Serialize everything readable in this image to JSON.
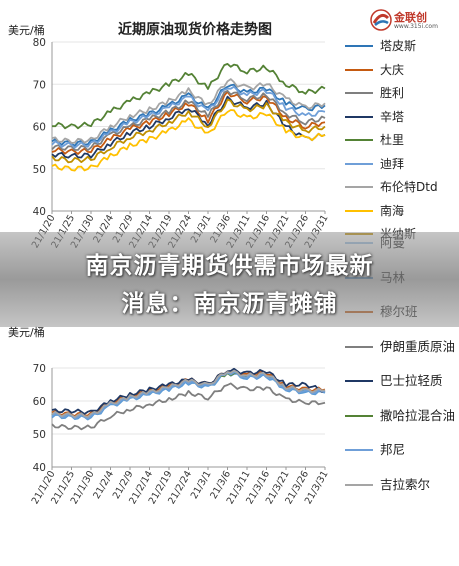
{
  "logo": {
    "name": "金联创",
    "sub": "www.315i.com"
  },
  "banner": {
    "line1": "南京沥青期货供需市场最新",
    "line2": "消息：南京沥青摊铺"
  },
  "chart_data": [
    {
      "type": "line",
      "title": "近期原油现货价格走势图",
      "ylabel": "美元/桶",
      "ylim": [
        40,
        80
      ],
      "yticks": [
        40,
        50,
        60,
        70,
        80
      ],
      "x": [
        "21/1/20",
        "21/1/25",
        "21/1/30",
        "21/2/4",
        "21/2/9",
        "21/2/14",
        "21/2/19",
        "21/2/24",
        "21/3/1",
        "21/3/6",
        "21/3/11",
        "21/3/16",
        "21/3/21",
        "21/3/26",
        "21/3/31"
      ],
      "series": [
        {
          "name": "塔皮斯",
          "color": "#2e75b6",
          "values": [
            56.5,
            56,
            56.2,
            59,
            61.5,
            63,
            65,
            67.5,
            64,
            70,
            68,
            69,
            65.5,
            64,
            65
          ]
        },
        {
          "name": "大庆",
          "color": "#c55a11",
          "values": [
            54.5,
            54,
            54.3,
            57,
            59.5,
            61,
            63,
            65.5,
            61.5,
            68,
            66,
            67,
            62,
            60,
            61
          ]
        },
        {
          "name": "胜利",
          "color": "#7f7f7f",
          "values": [
            55.2,
            54.8,
            55,
            58,
            60,
            61.8,
            63.5,
            66,
            62.5,
            68.5,
            66.5,
            67.5,
            63,
            61,
            62
          ]
        },
        {
          "name": "辛塔",
          "color": "#1f3864",
          "values": [
            53.5,
            53,
            53.2,
            56,
            58.5,
            60,
            62,
            64.5,
            60.5,
            66.5,
            64.5,
            65.5,
            60,
            57,
            58
          ]
        },
        {
          "name": "杜里",
          "color": "#548235",
          "values": [
            60.5,
            60,
            60.5,
            63.5,
            66,
            68,
            70,
            72.5,
            69,
            75,
            73,
            74,
            70,
            68,
            69
          ]
        },
        {
          "name": "迪拜",
          "color": "#6f9fd8",
          "values": [
            56,
            55.5,
            55.8,
            58.5,
            61,
            62.5,
            64.5,
            67,
            63.5,
            69.5,
            67.5,
            68.5,
            64.5,
            62.5,
            63.5
          ]
        },
        {
          "name": "布伦特Dtd",
          "color": "#a5a5a5",
          "values": [
            57,
            56.5,
            56.8,
            60,
            62.5,
            64,
            66,
            68.5,
            65,
            71,
            69,
            70,
            66.5,
            64.5,
            65.5
          ]
        },
        {
          "name": "南海",
          "color": "#ffc000",
          "values": [
            50.5,
            50,
            50.2,
            53,
            55.5,
            57,
            59,
            61.5,
            58,
            64,
            62,
            63,
            59,
            57,
            58
          ]
        },
        {
          "name": "米纳斯",
          "color": "#bf8f00",
          "values": [
            52.5,
            52,
            52.3,
            55,
            57.5,
            59,
            61,
            63.5,
            60,
            66,
            64,
            65,
            61,
            59,
            60
          ]
        }
      ]
    },
    {
      "type": "line",
      "ylabel": "美元/桶",
      "ylim": [
        40,
        70
      ],
      "yticks": [
        40,
        50,
        60,
        70
      ],
      "x": [
        "21/1/20",
        "21/1/25",
        "21/1/30",
        "21/2/4",
        "21/2/9",
        "21/2/14",
        "21/2/19",
        "21/2/24",
        "21/3/1",
        "21/3/6",
        "21/3/11",
        "21/3/16",
        "21/3/21",
        "21/3/26",
        "21/3/31"
      ],
      "series": [
        {
          "name": "阿曼",
          "color": "#9dc3e6",
          "values": [
            56,
            55.5,
            55.5,
            59,
            61,
            62.5,
            64,
            66,
            64.5,
            69,
            67.5,
            68,
            64,
            63,
            63
          ]
        },
        {
          "name": "马林",
          "color": "#5b9bd5",
          "values": [
            55.5,
            55,
            55,
            58.5,
            60.5,
            62,
            63.5,
            65.5,
            64,
            68.5,
            67,
            67.5,
            63.5,
            62.5,
            62.5
          ]
        },
        {
          "name": "穆尔班",
          "color": "#c55a11",
          "values": [
            56.5,
            56,
            56,
            59.5,
            61.5,
            63,
            64.5,
            66.5,
            65,
            69.5,
            68,
            68.5,
            64.5,
            63.5,
            63.5
          ]
        },
        {
          "name": "伊朗重质原油",
          "color": "#7f7f7f",
          "values": [
            52.5,
            52,
            52,
            55.5,
            57.5,
            59,
            60.5,
            62.5,
            61,
            65,
            63.5,
            64,
            60.5,
            59.5,
            59.5
          ]
        },
        {
          "name": "巴士拉轻质",
          "color": "#1f3864",
          "values": [
            57,
            57,
            56.5,
            60,
            62,
            63.5,
            65,
            66.5,
            65,
            69.5,
            68.5,
            69,
            65,
            65,
            63
          ]
        },
        {
          "name": "撒哈拉混合油",
          "color": "#548235",
          "values": [
            56,
            55.5,
            55.5,
            59,
            61,
            62.5,
            64,
            66,
            64.5,
            68.5,
            67.5,
            68,
            64,
            63,
            63
          ]
        },
        {
          "name": "邦尼",
          "color": "#6f9fd8",
          "values": [
            55.8,
            55.3,
            55.3,
            58.8,
            60.8,
            62.3,
            63.8,
            65.8,
            64.3,
            68.8,
            67.3,
            67.8,
            63.8,
            62.8,
            62.8
          ]
        },
        {
          "name": "吉拉索尔",
          "color": "#a5a5a5",
          "values": [
            56.2,
            55.7,
            55.7,
            59.2,
            61.2,
            62.7,
            64.2,
            66.2,
            64.7,
            69.2,
            67.7,
            68.2,
            64.2,
            63.2,
            63.2
          ]
        }
      ]
    }
  ]
}
